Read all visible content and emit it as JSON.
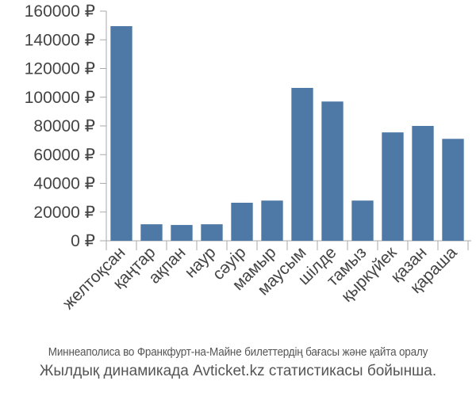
{
  "chart_data": {
    "type": "bar",
    "categories": [
      "желтоқсан",
      "қаңтар",
      "ақпан",
      "наур",
      "сәуір",
      "мамыр",
      "маусым",
      "шілде",
      "тамыз",
      "қыркүйек",
      "қазан",
      "қараша"
    ],
    "values": [
      149500,
      11500,
      11000,
      11500,
      26500,
      28000,
      106500,
      97000,
      28000,
      75500,
      80000,
      71000
    ],
    "ylim": [
      0,
      160000
    ],
    "yticks": [
      0,
      20000,
      40000,
      60000,
      80000,
      100000,
      120000,
      140000,
      160000
    ],
    "ytick_labels": [
      "0 ₽",
      "20000 ₽",
      "40000 ₽",
      "60000 ₽",
      "80000 ₽",
      "100000 ₽",
      "120000 ₽",
      "140000 ₽",
      "160000 ₽"
    ],
    "grid": false,
    "bar_color": "#4e79a7"
  },
  "caption": {
    "line1": "Миннеаполиса во Франкфурт-на-Майне билеттердің бағасы және қайта оралу",
    "line2": "Жылдық динамикада Avticket.kz статистикасы бойынша."
  }
}
